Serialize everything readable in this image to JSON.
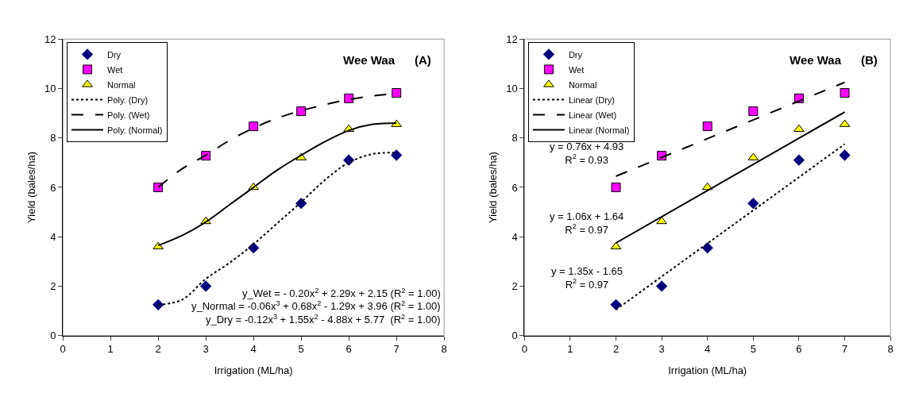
{
  "chart_data": [
    {
      "type": "scatter",
      "title": "Wee Waa      (A)",
      "xlabel": "Irrigation (ML/ha)",
      "ylabel": "Yield (bales/ha)",
      "x": [
        2,
        3,
        4,
        5,
        6,
        7
      ],
      "series": [
        {
          "name": "Dry",
          "color": "#000080",
          "marker": "diamond",
          "values": [
            1.25,
            2.0,
            3.55,
            5.35,
            7.1,
            7.3
          ]
        },
        {
          "name": "Wet",
          "color": "#ff00ff",
          "marker": "square",
          "values": [
            6.0,
            7.28,
            8.47,
            9.08,
            9.6,
            9.82
          ]
        },
        {
          "name": "Normal",
          "color": "#ffff00",
          "marker": "triangle",
          "values": [
            3.6,
            4.62,
            6.0,
            7.2,
            8.35,
            8.55
          ]
        },
        {
          "name": "Poly. (Dry)",
          "type": "line",
          "color": "#000000",
          "marker": "none",
          "line_style": "dotted",
          "x": [
            2,
            2.5,
            3,
            3.5,
            4,
            4.5,
            5,
            5.5,
            6,
            6.5,
            7
          ],
          "values": [
            1.25,
            1.45,
            2.3,
            2.95,
            3.7,
            4.55,
            5.4,
            6.3,
            7.0,
            7.35,
            7.4
          ]
        },
        {
          "name": "Poly. (Wet)",
          "type": "line",
          "color": "#000000",
          "marker": "none",
          "line_style": "dashed",
          "x": [
            2,
            2.5,
            3,
            3.5,
            4,
            4.5,
            5,
            5.5,
            6,
            6.5,
            7
          ],
          "values": [
            6.0,
            6.75,
            7.3,
            7.9,
            8.4,
            8.8,
            9.1,
            9.35,
            9.55,
            9.7,
            9.8
          ]
        },
        {
          "name": "Poly. (Normal)",
          "type": "line",
          "color": "#000000",
          "marker": "none",
          "line_style": "solid",
          "x": [
            2,
            2.5,
            3,
            3.5,
            4,
            4.5,
            5,
            5.5,
            6,
            6.5,
            7
          ],
          "values": [
            3.65,
            4.05,
            4.6,
            5.3,
            6.0,
            6.7,
            7.3,
            7.85,
            8.3,
            8.55,
            8.6
          ]
        }
      ],
      "xlim": [
        0,
        8
      ],
      "xticks": [
        0,
        1,
        2,
        3,
        4,
        5,
        6,
        7,
        8
      ],
      "ylim": [
        0,
        12
      ],
      "yticks": [
        0,
        2,
        4,
        6,
        8,
        10,
        12
      ],
      "grid": false,
      "legend": "top left",
      "annotations": [
        "y_Wet = - 0.20x$^{2}$ + 2.29x + 2.15 (R$^{2}$ = 1.00)",
        "y_Normal = -0.06x$^{3}$ + 0.68x$^{2}$ - 1.29x + 3.96 (R$^{2}$ = 1.00)",
        "y_Dry = -0.12x$^{3}$ + 1.55x$^{2}$ - 4.88x + 5.77  (R$^{2}$ = 1.00)"
      ]
    },
    {
      "type": "scatter",
      "title": "Wee Waa      (B)",
      "xlabel": "Irrigation (ML/ha)",
      "ylabel": "Yield (bales/ha)",
      "x": [
        2,
        3,
        4,
        5,
        6,
        7
      ],
      "series": [
        {
          "name": "Dry",
          "color": "#000080",
          "marker": "diamond",
          "values": [
            1.25,
            2.0,
            3.55,
            5.35,
            7.1,
            7.3
          ]
        },
        {
          "name": "Wet",
          "color": "#ff00ff",
          "marker": "square",
          "values": [
            6.0,
            7.28,
            8.47,
            9.08,
            9.6,
            9.82
          ]
        },
        {
          "name": "Normal",
          "color": "#ffff00",
          "marker": "triangle",
          "values": [
            3.6,
            4.62,
            6.0,
            7.2,
            8.35,
            8.55
          ]
        },
        {
          "name": "Linear (Dry)",
          "type": "line",
          "color": "#000000",
          "marker": "none",
          "line_style": "dotted",
          "x": [
            2,
            7
          ],
          "values": [
            1.05,
            7.75
          ]
        },
        {
          "name": "Linear (Wet)",
          "type": "line",
          "color": "#000000",
          "marker": "none",
          "line_style": "dashed",
          "x": [
            2,
            7
          ],
          "values": [
            6.45,
            10.25
          ]
        },
        {
          "name": "Linear (Normal)",
          "type": "line",
          "color": "#000000",
          "marker": "none",
          "line_style": "solid",
          "x": [
            2,
            7
          ],
          "values": [
            3.75,
            9.05
          ]
        }
      ],
      "xlim": [
        0,
        8
      ],
      "xticks": [
        0,
        1,
        2,
        3,
        4,
        5,
        6,
        7,
        8
      ],
      "ylim": [
        0,
        12
      ],
      "yticks": [
        0,
        2,
        4,
        6,
        8,
        10,
        12
      ],
      "grid": false,
      "legend": "top left",
      "annotations": [
        "y = 0.76x + 4.93\nR$^{2}$ = 0.93",
        "y = 1.06x + 1.64\nR$^{2}$ = 0.97",
        "y = 1.35x - 1.65\nR$^{2}$ = 0.97"
      ]
    }
  ]
}
